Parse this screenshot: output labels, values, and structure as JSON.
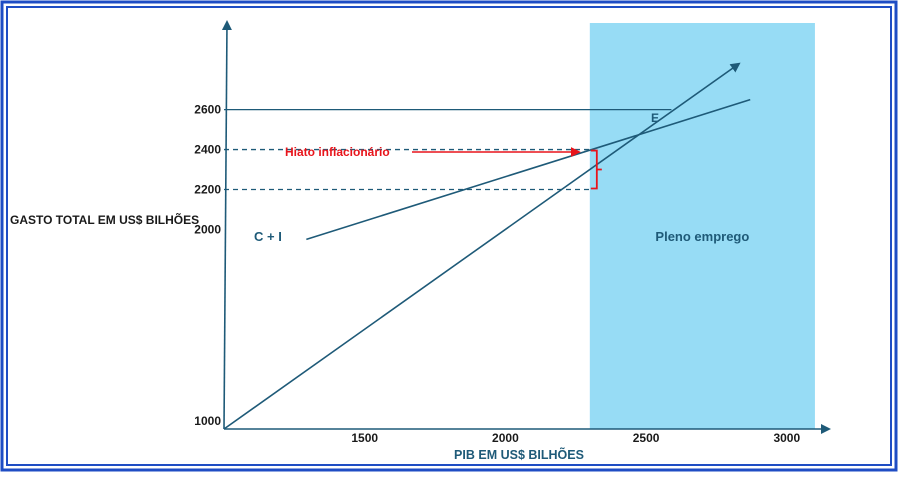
{
  "chart_data": {
    "type": "line",
    "title": "",
    "xlabel": "PIB EM US$ BILHÕES",
    "ylabel": "GASTO TOTAL EM US$ BILHÕES",
    "x_ticks": [
      "1500",
      "2000",
      "2500",
      "3000"
    ],
    "y_ticks": [
      "1000",
      "2000",
      "2200",
      "2400",
      "2600"
    ],
    "series": [
      {
        "name": "C + I",
        "points": [
          [
            1250,
            1900
          ],
          [
            2870,
            2650
          ]
        ]
      },
      {
        "name": "",
        "points": [
          [
            1000,
            1000
          ],
          [
            2830,
            2830
          ]
        ]
      }
    ],
    "region": {
      "label": "Pleno emprego",
      "x_range": [
        2300,
        3100
      ],
      "color": "#97dcf5"
    },
    "reference_lines": [
      {
        "y": 2600,
        "style": "solid"
      },
      {
        "y": 2400,
        "style": "dashed"
      },
      {
        "y": 2200,
        "style": "dashed"
      }
    ],
    "annotations": {
      "equilibrium_label": "E",
      "gap_label": "Hiato inflacionário",
      "gap_range": [
        2200,
        2400
      ],
      "gap_x": 2300
    },
    "colors": {
      "frame": "#1f4dc4",
      "axis": "#1e5a78",
      "line": "#1e5a78",
      "gap": "#e8141b"
    }
  }
}
